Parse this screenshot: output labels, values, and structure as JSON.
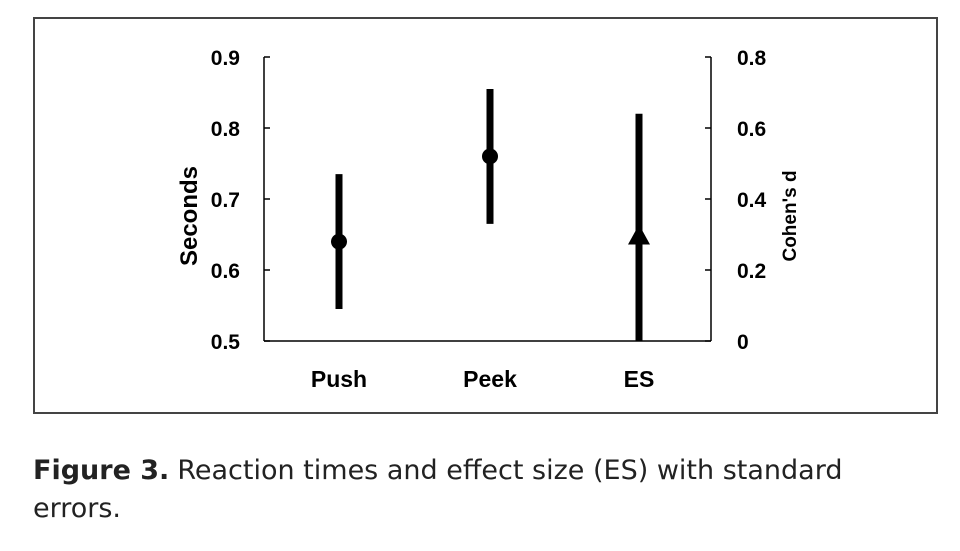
{
  "chart_data": {
    "type": "scatter",
    "categories": [
      "Push",
      "Peek",
      "ES"
    ],
    "series": [
      {
        "axis": "left",
        "marker": "circle",
        "points": [
          {
            "category": "Push",
            "value": 0.64,
            "error_low": 0.545,
            "error_high": 0.735
          },
          {
            "category": "Peek",
            "value": 0.76,
            "error_low": 0.665,
            "error_high": 0.855
          }
        ]
      },
      {
        "axis": "right",
        "marker": "triangle",
        "points": [
          {
            "category": "ES",
            "value": 0.3,
            "error_low": 0.0,
            "error_high": 0.64
          }
        ]
      }
    ],
    "left_axis": {
      "label": "Seconds",
      "ylim": [
        0.5,
        0.9
      ],
      "ticks": [
        "0.5",
        "0.6",
        "0.7",
        "0.8",
        "0.9"
      ]
    },
    "right_axis": {
      "label": "Cohen's d",
      "ylim": [
        0,
        0.8
      ],
      "ticks": [
        "0",
        "0.2",
        "0.4",
        "0.6",
        "0.8"
      ]
    },
    "grid": false,
    "colors": {
      "marks": "#000000",
      "frame": "#444444"
    }
  },
  "caption": {
    "label": "Figure 3.",
    "text": "Reaction times and effect size (ES) with standard errors."
  }
}
